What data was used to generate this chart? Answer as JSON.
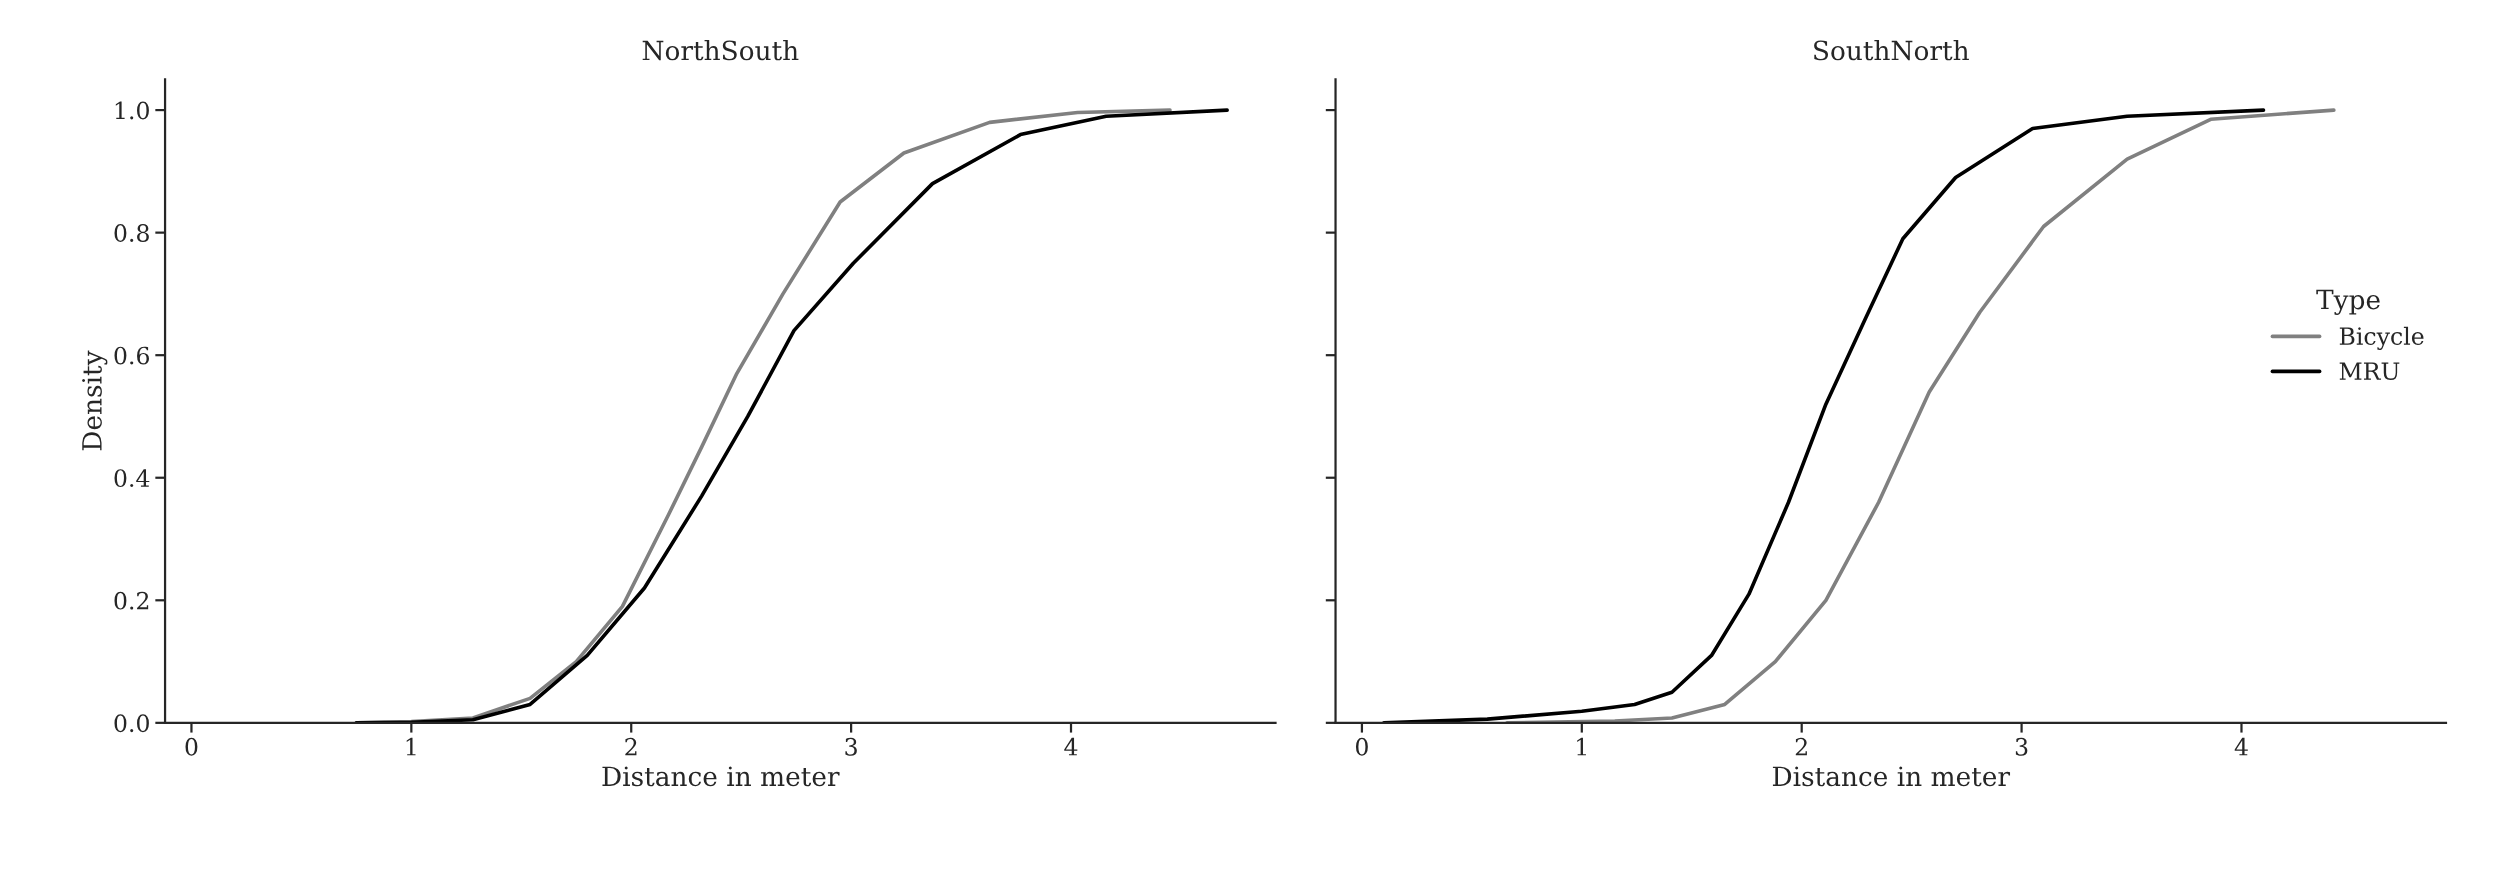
{
  "chart_data": [
    {
      "type": "line",
      "title": "NorthSouth",
      "xlabel": "Distance in meter",
      "ylabel": "Density",
      "xlim": [
        -0.12,
        4.93
      ],
      "xticks": [
        0,
        1,
        2,
        3,
        4
      ],
      "ylim": [
        0,
        1.05
      ],
      "yticks": [
        {
          "value": 0,
          "label": "0.0"
        },
        {
          "value": 0.2,
          "label": "0.2"
        },
        {
          "value": 0.4,
          "label": "0.4"
        },
        {
          "value": 0.6,
          "label": "0.6"
        },
        {
          "value": 0.8,
          "label": "0.8"
        },
        {
          "value": 1.0,
          "label": "1.0"
        }
      ],
      "grid": false,
      "legend": false,
      "series": [
        {
          "color": "#808080",
          "x": [
            0.75,
            1.0,
            1.28,
            1.54,
            1.75,
            1.96,
            2.17,
            2.32,
            2.48,
            2.69,
            2.95,
            3.24,
            3.63,
            4.03,
            4.45
          ],
          "values": [
            0,
            0.002,
            0.008,
            0.04,
            0.1,
            0.19,
            0.34,
            0.45,
            0.57,
            0.7,
            0.85,
            0.93,
            0.98,
            0.996,
            1.0
          ]
        },
        {
          "color": "#000000",
          "x": [
            0.75,
            1.0,
            1.28,
            1.54,
            1.8,
            2.06,
            2.32,
            2.53,
            2.74,
            3.01,
            3.37,
            3.77,
            4.16,
            4.71
          ],
          "values": [
            0,
            0.001,
            0.005,
            0.03,
            0.11,
            0.22,
            0.37,
            0.5,
            0.64,
            0.75,
            0.88,
            0.96,
            0.99,
            1.0
          ]
        }
      ]
    },
    {
      "type": "line",
      "title": "SouthNorth",
      "xlabel": "Distance in meter",
      "legend_title": "Type",
      "xlim": [
        -0.12,
        4.93
      ],
      "xticks": [
        0,
        1,
        2,
        3,
        4
      ],
      "ylim": [
        0,
        1.05
      ],
      "yticks": [
        0,
        0.2,
        0.4,
        0.6,
        0.8,
        1.0
      ],
      "tick_labels": "x",
      "grid": false,
      "legend": "right",
      "series": [
        {
          "name": "Bicycle",
          "color": "#808080",
          "x": [
            0.66,
            1.15,
            1.41,
            1.65,
            1.88,
            2.11,
            2.35,
            2.58,
            2.81,
            3.1,
            3.48,
            3.86,
            4.42
          ],
          "values": [
            0,
            0.003,
            0.008,
            0.03,
            0.1,
            0.2,
            0.36,
            0.54,
            0.67,
            0.81,
            0.92,
            0.985,
            1.0
          ]
        },
        {
          "name": "MRU",
          "color": "#000000",
          "x": [
            0.1,
            0.57,
            1.0,
            1.24,
            1.41,
            1.59,
            1.76,
            1.94,
            2.11,
            2.29,
            2.46,
            2.7,
            3.05,
            3.48,
            4.1
          ],
          "values": [
            0,
            0.006,
            0.019,
            0.03,
            0.05,
            0.11,
            0.21,
            0.36,
            0.52,
            0.66,
            0.79,
            0.89,
            0.97,
            0.99,
            1.0
          ]
        }
      ]
    }
  ]
}
